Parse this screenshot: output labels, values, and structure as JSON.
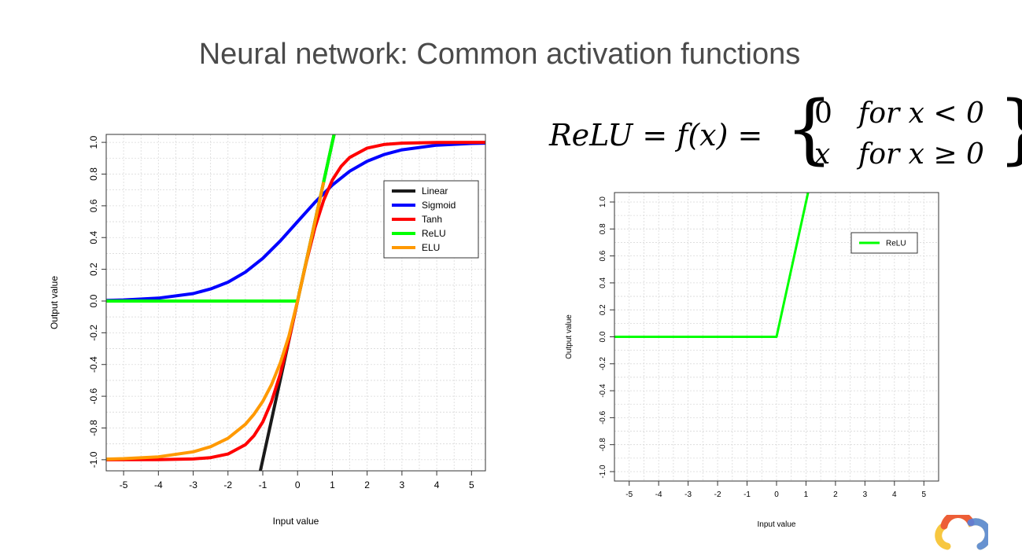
{
  "slide": {
    "title": "Neural network: Common activation functions",
    "formula": {
      "lhs": "ReLU = f(x) =",
      "case1_value": "0",
      "case1_condition": "for x < 0",
      "case2_value": "x",
      "case2_condition": "for x ≥ 0"
    },
    "logo": "google-cloud-logo"
  },
  "chart_data": [
    {
      "type": "line",
      "xlabel": "Input value",
      "ylabel": "Output value",
      "xlim": [
        -5.5,
        5.4
      ],
      "ylim": [
        -1.07,
        1.05
      ],
      "x_ticks": [
        -5,
        -4,
        -3,
        -2,
        -1,
        0,
        1,
        2,
        3,
        4,
        5
      ],
      "y_ticks": [
        -1.0,
        -0.8,
        -0.6,
        -0.4,
        -0.2,
        0.0,
        0.2,
        0.4,
        0.6,
        0.8,
        1.0
      ],
      "y_tick_labels": [
        "-1.0",
        "-0.8",
        "-0.6",
        "-0.4",
        "-0.2",
        "0.0",
        "0.2",
        "0.4",
        "0.6",
        "0.8",
        "1.0"
      ],
      "grid": true,
      "legend_position": "top-right",
      "series": [
        {
          "name": "Linear",
          "color": "#1a1a1a",
          "x": [
            -1.1,
            -1.0,
            0,
            1.0,
            1.1
          ],
          "y": [
            -1.1,
            -1.0,
            0,
            1.0,
            1.1
          ]
        },
        {
          "name": "Sigmoid",
          "color": "#0000ff",
          "x": [
            -5.5,
            -5,
            -4,
            -3,
            -2.5,
            -2,
            -1.5,
            -1,
            -0.5,
            0,
            0.5,
            1,
            1.5,
            2,
            2.5,
            3,
            4,
            5,
            5.4
          ],
          "y": [
            0.004,
            0.007,
            0.018,
            0.047,
            0.076,
            0.119,
            0.182,
            0.269,
            0.378,
            0.5,
            0.622,
            0.731,
            0.818,
            0.881,
            0.924,
            0.953,
            0.982,
            0.993,
            0.995
          ]
        },
        {
          "name": "Tanh",
          "color": "#ff0000",
          "x": [
            -5.5,
            -4,
            -3,
            -2.5,
            -2,
            -1.5,
            -1.25,
            -1,
            -0.75,
            -0.5,
            -0.25,
            0,
            0.25,
            0.5,
            0.75,
            1,
            1.25,
            1.5,
            2,
            2.5,
            3,
            4,
            5.4
          ],
          "y": [
            -1.0,
            -0.999,
            -0.995,
            -0.987,
            -0.964,
            -0.905,
            -0.848,
            -0.762,
            -0.635,
            -0.462,
            -0.245,
            0,
            0.245,
            0.462,
            0.635,
            0.762,
            0.848,
            0.905,
            0.964,
            0.987,
            0.995,
            0.999,
            1.0
          ]
        },
        {
          "name": "ReLU",
          "color": "#00ff00",
          "x": [
            -5.5,
            0,
            1.05
          ],
          "y": [
            0,
            0,
            1.05
          ]
        },
        {
          "name": "ELU",
          "color": "#ff9900",
          "x": [
            -5.5,
            -5,
            -4,
            -3,
            -2.5,
            -2,
            -1.5,
            -1.25,
            -1,
            -0.75,
            -0.5,
            -0.25,
            0,
            0.4,
            0.75
          ],
          "y": [
            -0.996,
            -0.993,
            -0.982,
            -0.95,
            -0.918,
            -0.865,
            -0.777,
            -0.713,
            -0.632,
            -0.528,
            -0.393,
            -0.221,
            0,
            0.4,
            0.75
          ]
        }
      ]
    },
    {
      "type": "line",
      "xlabel": "Input value",
      "ylabel": "Output value",
      "xlim": [
        -5.5,
        5.5
      ],
      "ylim": [
        -1.07,
        1.07
      ],
      "x_ticks": [
        -5,
        -4,
        -3,
        -2,
        -1,
        0,
        1,
        2,
        3,
        4,
        5
      ],
      "y_ticks": [
        -1.0,
        -0.8,
        -0.6,
        -0.4,
        -0.2,
        0.0,
        0.2,
        0.4,
        0.6,
        0.8,
        1.0
      ],
      "y_tick_labels": [
        "-1.0",
        "-0.8",
        "-0.6",
        "-0.4",
        "-0.2",
        "0.0",
        "0.2",
        "0.4",
        "0.6",
        "0.8",
        "1.0"
      ],
      "grid": true,
      "legend_position": "top-right",
      "series": [
        {
          "name": "ReLU",
          "color": "#00ff00",
          "x": [
            -5.5,
            0,
            1.1
          ],
          "y": [
            0,
            0,
            1.1
          ]
        }
      ]
    }
  ]
}
